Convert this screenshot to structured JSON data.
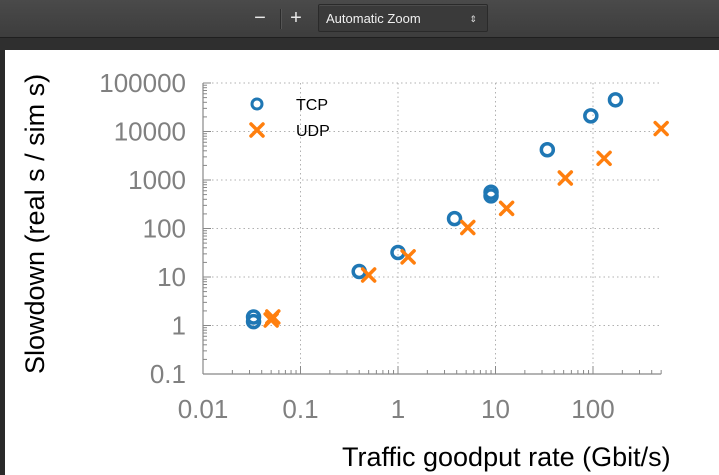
{
  "toolbar": {
    "zoom_out_label": "−",
    "zoom_in_label": "+",
    "zoom_select_value": "Automatic Zoom",
    "zoom_select_arrow": "⇕"
  },
  "colors": {
    "tcp": "#1f77b4",
    "udp": "#ff7f0e",
    "axis": "#888888",
    "tick_label": "#808080",
    "axis_title": "#000000"
  },
  "chart_data": {
    "type": "scatter",
    "title": "",
    "xlabel": "Traffic goodput rate (Gbit/s)",
    "ylabel": "Slowdown (real s / sim s)",
    "xscale": "log",
    "yscale": "log",
    "xlim": [
      0.01,
      500
    ],
    "ylim": [
      0.1,
      100000
    ],
    "xticks": [
      "0.01",
      "0.1",
      "1",
      "10",
      "100"
    ],
    "yticks": [
      "0.1",
      "1",
      "10",
      "100",
      "1000",
      "10000",
      "100000"
    ],
    "grid": "dotted, major decades",
    "legend_position": "upper left",
    "series": [
      {
        "name": "TCP",
        "marker": "circle",
        "points": [
          {
            "x": 0.033,
            "y": 1.2
          },
          {
            "x": 0.033,
            "y": 1.5
          },
          {
            "x": 0.4,
            "y": 13
          },
          {
            "x": 1.0,
            "y": 32
          },
          {
            "x": 3.8,
            "y": 160
          },
          {
            "x": 9.0,
            "y": 470
          },
          {
            "x": 9.0,
            "y": 560
          },
          {
            "x": 34,
            "y": 4200
          },
          {
            "x": 95,
            "y": 21000
          },
          {
            "x": 170,
            "y": 45000
          }
        ]
      },
      {
        "name": "UDP",
        "marker": "x",
        "points": [
          {
            "x": 0.05,
            "y": 1.3
          },
          {
            "x": 0.052,
            "y": 1.5
          },
          {
            "x": 0.5,
            "y": 11
          },
          {
            "x": 1.27,
            "y": 26
          },
          {
            "x": 5.2,
            "y": 105
          },
          {
            "x": 13,
            "y": 260
          },
          {
            "x": 52,
            "y": 1100
          },
          {
            "x": 130,
            "y": 2800
          },
          {
            "x": 500,
            "y": 11500
          }
        ]
      }
    ]
  }
}
